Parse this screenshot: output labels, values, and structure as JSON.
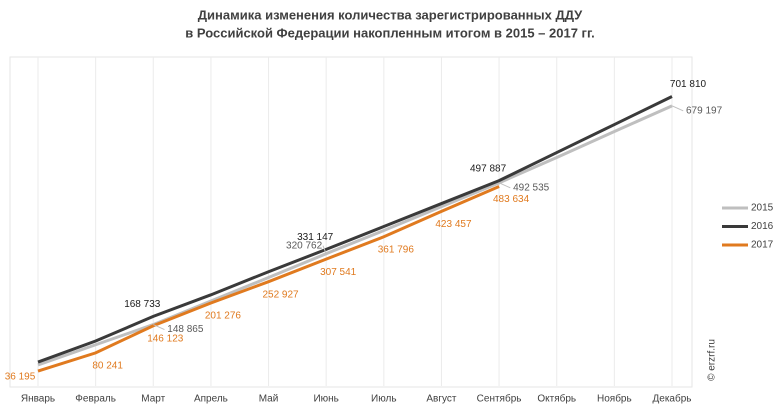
{
  "chart_data": {
    "type": "line",
    "title": [
      "Динамика изменения количества зарегистрированных ДДУ",
      "в Российской Федерации накопленным итогом в 2015 – 2017 гг."
    ],
    "watermark": "© erzrf.ru",
    "categories": [
      "Январь",
      "Февраль",
      "Март",
      "Апрель",
      "Май",
      "Июнь",
      "Июль",
      "Август",
      "Сентябрь",
      "Октябрь",
      "Ноябрь",
      "Декабрь"
    ],
    "ylim": [
      0,
      800000
    ],
    "grid": true,
    "legend": "right",
    "series": [
      {
        "name": "2015",
        "color": "#bfbfbf",
        "values": [
          51000,
          100000,
          148865,
          206000,
          263000,
          320762,
          377000,
          435000,
          492535,
          554000,
          617000,
          679197
        ],
        "value_labels": [
          null,
          null,
          "148 865",
          null,
          null,
          "320 762",
          null,
          null,
          "492 535",
          null,
          null,
          "679 197"
        ]
      },
      {
        "name": "2016",
        "color": "#3a3a3a",
        "values": [
          58000,
          109000,
          168733,
          221000,
          277000,
          331147,
          386700,
          442300,
          497887,
          565861,
          633836,
          701810
        ],
        "value_labels": [
          null,
          null,
          "168 733",
          null,
          null,
          "331 147",
          null,
          null,
          "497 887",
          null,
          null,
          "701 810"
        ]
      },
      {
        "name": "2017",
        "color": "#e07a1f",
        "values": [
          36195,
          80241,
          146123,
          201276,
          252927,
          307541,
          361796,
          423457,
          483634,
          null,
          null,
          null
        ],
        "value_labels": [
          "36 195",
          "80 241",
          "146 123",
          "201 276",
          "252 927",
          "307 541",
          "361 796",
          "423 457",
          "483 634",
          null,
          null,
          null
        ]
      }
    ]
  }
}
